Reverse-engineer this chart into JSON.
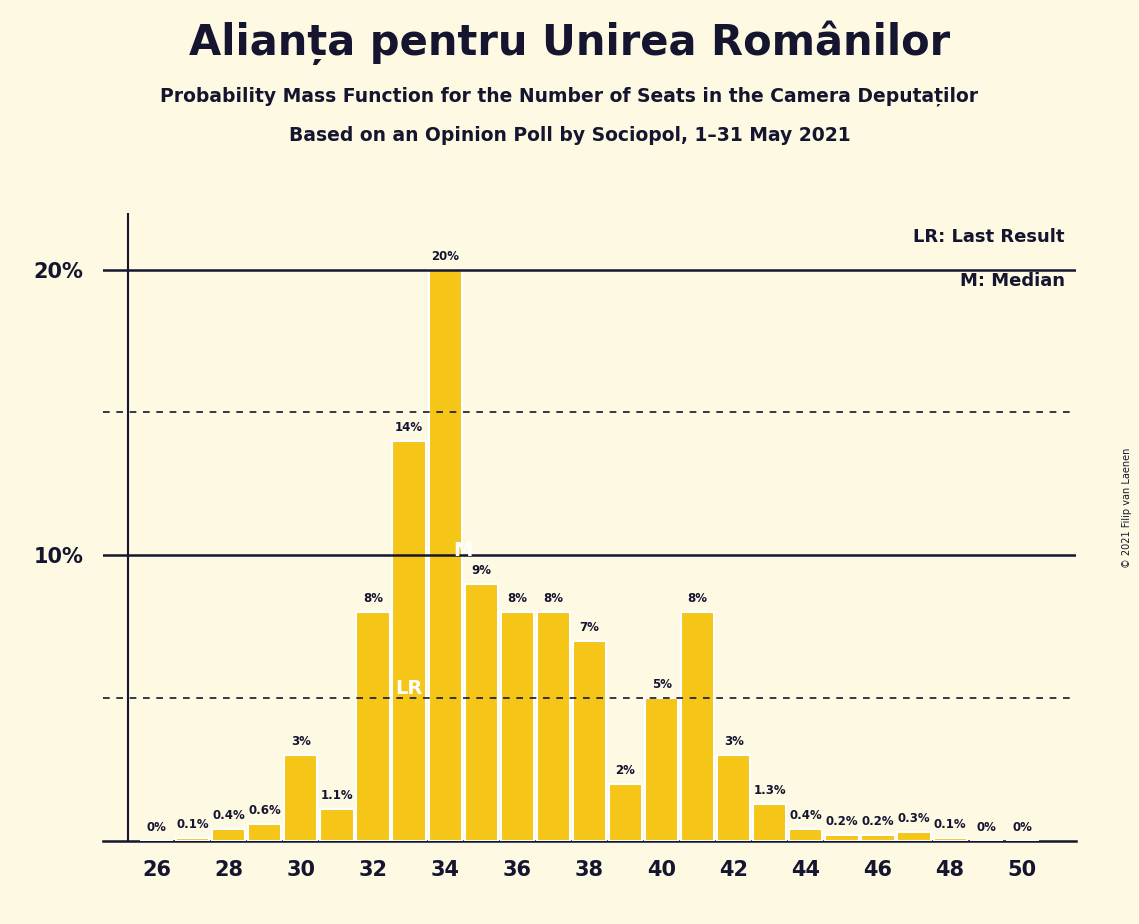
{
  "title": "Alianța pentru Unirea Românilor",
  "subtitle1": "Probability Mass Function for the Number of Seats in the Camera Deputaților",
  "subtitle2": "Based on an Opinion Poll by Sociopol, 1–31 May 2021",
  "copyright": "© 2021 Filip van Laenen",
  "background_color": "#fdf9e3",
  "bar_color": "#f5c518",
  "bar_edge_color": "#ffffff",
  "text_color": "#151530",
  "seats": [
    26,
    27,
    28,
    29,
    30,
    31,
    32,
    33,
    34,
    35,
    36,
    37,
    38,
    39,
    40,
    41,
    42,
    43,
    44,
    45,
    46,
    47,
    48,
    49,
    50
  ],
  "probabilities": [
    0.0,
    0.1,
    0.4,
    0.6,
    3.0,
    1.1,
    8.0,
    14.0,
    20.0,
    9.0,
    8.0,
    8.0,
    7.0,
    2.0,
    5.0,
    8.0,
    3.0,
    1.3,
    0.4,
    0.2,
    0.2,
    0.3,
    0.1,
    0.0,
    0.0
  ],
  "labels": [
    "0%",
    "0.1%",
    "0.4%",
    "0.6%",
    "3%",
    "1.1%",
    "8%",
    "14%",
    "20%",
    "9%",
    "8%",
    "8%",
    "7%",
    "2%",
    "5%",
    "8%",
    "3%",
    "1.3%",
    "0.4%",
    "0.2%",
    "0.2%",
    "0.3%",
    "0.1%",
    "0%",
    "0%"
  ],
  "ylim_max": 22.0,
  "solid_hlines": [
    10.0,
    20.0
  ],
  "dotted_hlines": [
    5.0,
    15.0
  ],
  "ytick_vals": [
    10,
    20
  ],
  "ytick_labels": [
    "10%",
    "20%"
  ],
  "lr_seat": 33,
  "median_seat": 35,
  "lr_label": "LR",
  "median_label": "M",
  "legend_lr": "LR: Last Result",
  "legend_m": "M: Median",
  "xtick_positions": [
    26,
    28,
    30,
    32,
    34,
    36,
    38,
    40,
    42,
    44,
    46,
    48,
    50
  ],
  "xlim": [
    24.5,
    51.5
  ],
  "left_spine_x": 25.2
}
